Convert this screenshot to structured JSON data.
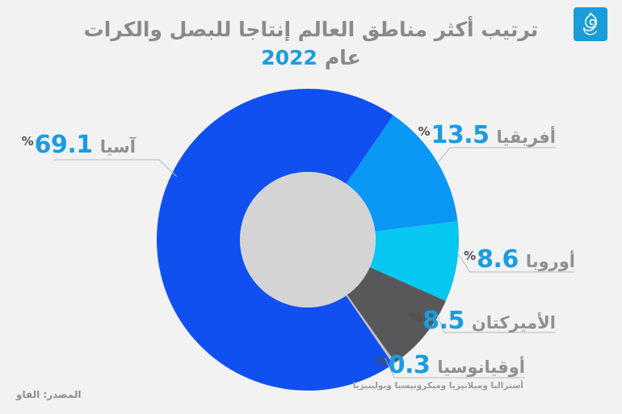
{
  "header": {
    "title_line1": "ترتيب أكثر مناطق العالم إنتاجا للبصل والكرات",
    "title_line2_prefix": "عام",
    "title_line2_year": "2022",
    "title_color": "#8a8a8a",
    "accent_color": "#1b9ce0"
  },
  "logo": {
    "name": "Al Jazeera",
    "bg_color": "#1a9dd9"
  },
  "percent_sign": "%",
  "source": {
    "label": "المصدر: الفاو"
  },
  "chart_data": {
    "type": "pie",
    "donut": true,
    "title": "ترتيب أكثر مناطق العالم إنتاجا للبصل والكرات عام 2022",
    "units": "percent",
    "hole_color": "#d4d4d4",
    "background_color": "#f2f2f2",
    "callout_line_color": "#b8b8b8",
    "segments": [
      {
        "label": "آسيا",
        "value": 69.1,
        "display": "69.1",
        "color": "#1150f0"
      },
      {
        "label": "أفريقيا",
        "value": 13.5,
        "display": "13.5",
        "color": "#0a97f5"
      },
      {
        "label": "أوروبا",
        "value": 8.6,
        "display": "8.6",
        "color": "#06c7f0"
      },
      {
        "label": "الأميركتان",
        "value": 8.5,
        "display": "8.5",
        "color": "#58585a"
      },
      {
        "label": "أوقيانوسيا",
        "value": 0.3,
        "display": "0.3",
        "color": "#c3c3c3",
        "note": "أستراليا وميلانيزيا وميكرونيسيا وبولينيزيا"
      }
    ]
  }
}
